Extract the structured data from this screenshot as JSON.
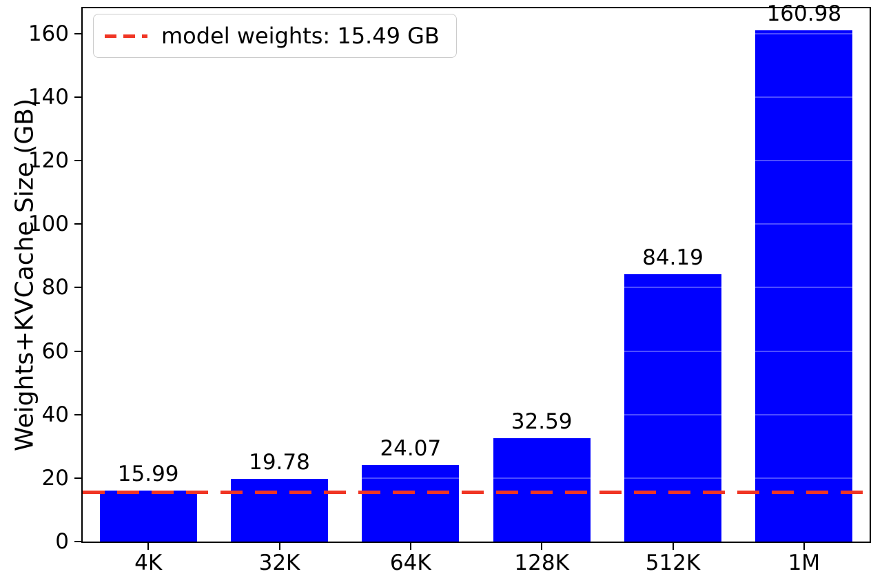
{
  "chart_data": {
    "type": "bar",
    "title": "",
    "xlabel": "",
    "ylabel": "Weights+KVCache Size (GB)",
    "categories": [
      "4K",
      "32K",
      "64K",
      "128K",
      "512K",
      "1M"
    ],
    "values": [
      15.99,
      19.78,
      24.07,
      32.59,
      84.19,
      160.98
    ],
    "value_labels": [
      "15.99",
      "19.78",
      "24.07",
      "32.59",
      "84.19",
      "160.98"
    ],
    "yticks": [
      0,
      20,
      40,
      60,
      80,
      100,
      120,
      140,
      160
    ],
    "ylim": [
      0,
      168
    ],
    "grid": "faint-horizontal",
    "legend_position": "upper-left",
    "legend": {
      "label": "model weights: 15.49 GB"
    },
    "ref_line": {
      "value": 15.49,
      "style": "dashed"
    },
    "colors": {
      "bar": "#0000ff",
      "line": "#f03524",
      "axis": "#000000",
      "legend_border": "#cccccc"
    }
  }
}
